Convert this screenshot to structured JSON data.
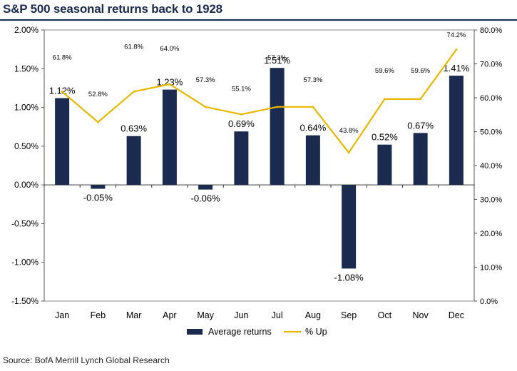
{
  "title": "S&P 500 seasonal returns back to 1928",
  "source": "Source: BofA Merrill Lynch Global Research",
  "colors": {
    "bar": "#1a2b4f",
    "line": "#e8b800",
    "title": "#1a2b4f"
  },
  "chart_data": {
    "type": "bar",
    "categories": [
      "Jan",
      "Feb",
      "Mar",
      "Apr",
      "May",
      "Jun",
      "Jul",
      "Aug",
      "Sep",
      "Oct",
      "Nov",
      "Dec"
    ],
    "series": [
      {
        "name": "Average returns",
        "type": "bar",
        "axis": "left",
        "values": [
          1.12,
          -0.05,
          0.63,
          1.23,
          -0.06,
          0.69,
          1.51,
          0.64,
          -1.08,
          0.52,
          0.67,
          1.41
        ],
        "labels": [
          "1.12%",
          "-0.05%",
          "0.63%",
          "1.23%",
          "-0.06%",
          "0.69%",
          "1.51%",
          "0.64%",
          "-1.08%",
          "0.52%",
          "0.67%",
          "1.41%"
        ]
      },
      {
        "name": "% Up",
        "type": "line",
        "axis": "right",
        "values": [
          61.8,
          52.8,
          61.8,
          64.0,
          57.3,
          55.1,
          57.3,
          57.3,
          43.8,
          59.6,
          59.6,
          74.2
        ],
        "labels": [
          "61.8%",
          "52.8%",
          "61.8%",
          "64.0%",
          "57.3%",
          "55.1%",
          "57.3%",
          "57.3%",
          "43.8%",
          "59.6%",
          "59.6%",
          "74.2%"
        ]
      }
    ],
    "y_left": {
      "ylim": [
        -1.5,
        2.0
      ],
      "ticks": [
        2.0,
        1.5,
        1.0,
        0.5,
        0.0,
        -0.5,
        -1.0,
        -1.5
      ],
      "tick_labels": [
        "2.00%",
        "1.50%",
        "1.00%",
        "0.50%",
        "0.00%",
        "-0.50%",
        "-1.00%",
        "-1.50%"
      ]
    },
    "y_right": {
      "ylim": [
        0,
        80
      ],
      "ticks": [
        80,
        70,
        60,
        50,
        40,
        30,
        20,
        10,
        0
      ],
      "tick_labels": [
        "80.0%",
        "70.0%",
        "60.0%",
        "50.0%",
        "40.0%",
        "30.0%",
        "20.0%",
        "10.0%",
        "0.0%"
      ]
    },
    "grid": false,
    "legend": {
      "position": "bottom",
      "entries": [
        "Average returns",
        "% Up"
      ]
    }
  }
}
